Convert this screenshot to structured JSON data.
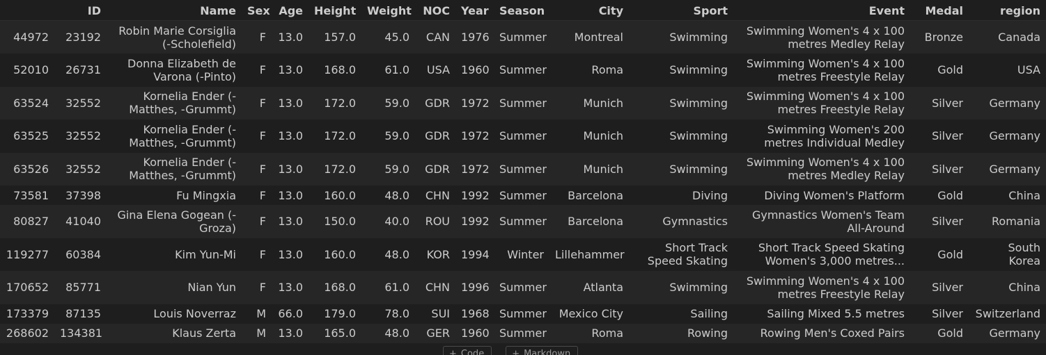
{
  "table": {
    "columns": [
      "",
      "ID",
      "Name",
      "Sex",
      "Age",
      "Height",
      "Weight",
      "NOC",
      "Year",
      "Season",
      "City",
      "Sport",
      "Event",
      "Medal",
      "region"
    ],
    "rows": [
      {
        "idx": "44972",
        "ID": "23192",
        "Name": "Robin Marie Corsiglia (-Scholefield)",
        "Sex": "F",
        "Age": "13.0",
        "Height": "157.0",
        "Weight": "45.0",
        "NOC": "CAN",
        "Year": "1976",
        "Season": "Summer",
        "City": "Montreal",
        "Sport": "Swimming",
        "Event": "Swimming Women's 4 x 100 metres Medley Relay",
        "Medal": "Bronze",
        "region": "Canada"
      },
      {
        "idx": "52010",
        "ID": "26731",
        "Name": "Donna Elizabeth de Varona (-Pinto)",
        "Sex": "F",
        "Age": "13.0",
        "Height": "168.0",
        "Weight": "61.0",
        "NOC": "USA",
        "Year": "1960",
        "Season": "Summer",
        "City": "Roma",
        "Sport": "Swimming",
        "Event": "Swimming Women's 4 x 100 metres Freestyle Relay",
        "Medal": "Gold",
        "region": "USA"
      },
      {
        "idx": "63524",
        "ID": "32552",
        "Name": "Kornelia Ender (-Matthes, -Grummt)",
        "Sex": "F",
        "Age": "13.0",
        "Height": "172.0",
        "Weight": "59.0",
        "NOC": "GDR",
        "Year": "1972",
        "Season": "Summer",
        "City": "Munich",
        "Sport": "Swimming",
        "Event": "Swimming Women's 4 x 100 metres Freestyle Relay",
        "Medal": "Silver",
        "region": "Germany"
      },
      {
        "idx": "63525",
        "ID": "32552",
        "Name": "Kornelia Ender (-Matthes, -Grummt)",
        "Sex": "F",
        "Age": "13.0",
        "Height": "172.0",
        "Weight": "59.0",
        "NOC": "GDR",
        "Year": "1972",
        "Season": "Summer",
        "City": "Munich",
        "Sport": "Swimming",
        "Event": "Swimming Women's 200 metres Individual Medley",
        "Medal": "Silver",
        "region": "Germany"
      },
      {
        "idx": "63526",
        "ID": "32552",
        "Name": "Kornelia Ender (-Matthes, -Grummt)",
        "Sex": "F",
        "Age": "13.0",
        "Height": "172.0",
        "Weight": "59.0",
        "NOC": "GDR",
        "Year": "1972",
        "Season": "Summer",
        "City": "Munich",
        "Sport": "Swimming",
        "Event": "Swimming Women's 4 x 100 metres Medley Relay",
        "Medal": "Silver",
        "region": "Germany"
      },
      {
        "idx": "73581",
        "ID": "37398",
        "Name": "Fu Mingxia",
        "Sex": "F",
        "Age": "13.0",
        "Height": "160.0",
        "Weight": "48.0",
        "NOC": "CHN",
        "Year": "1992",
        "Season": "Summer",
        "City": "Barcelona",
        "Sport": "Diving",
        "Event": "Diving Women's Platform",
        "Medal": "Gold",
        "region": "China"
      },
      {
        "idx": "80827",
        "ID": "41040",
        "Name": "Gina Elena Gogean (-Groza)",
        "Sex": "F",
        "Age": "13.0",
        "Height": "150.0",
        "Weight": "40.0",
        "NOC": "ROU",
        "Year": "1992",
        "Season": "Summer",
        "City": "Barcelona",
        "Sport": "Gymnastics",
        "Event": "Gymnastics Women's Team All-Around",
        "Medal": "Silver",
        "region": "Romania"
      },
      {
        "idx": "119277",
        "ID": "60384",
        "Name": "Kim Yun-Mi",
        "Sex": "F",
        "Age": "13.0",
        "Height": "160.0",
        "Weight": "48.0",
        "NOC": "KOR",
        "Year": "1994",
        "Season": "Winter",
        "City": "Lillehammer",
        "Sport": "Short Track Speed Skating",
        "Event": "Short Track Speed Skating Women's 3,000 metres...",
        "Medal": "Gold",
        "region": "South Korea"
      },
      {
        "idx": "170652",
        "ID": "85771",
        "Name": "Nian Yun",
        "Sex": "F",
        "Age": "13.0",
        "Height": "168.0",
        "Weight": "61.0",
        "NOC": "CHN",
        "Year": "1996",
        "Season": "Summer",
        "City": "Atlanta",
        "Sport": "Swimming",
        "Event": "Swimming Women's 4 x 100 metres Freestyle Relay",
        "Medal": "Silver",
        "region": "China"
      },
      {
        "idx": "173379",
        "ID": "87135",
        "Name": "Louis Noverraz",
        "Sex": "M",
        "Age": "66.0",
        "Height": "179.0",
        "Weight": "78.0",
        "NOC": "SUI",
        "Year": "1968",
        "Season": "Summer",
        "City": "Mexico City",
        "Sport": "Sailing",
        "Event": "Sailing Mixed 5.5 metres",
        "Medal": "Silver",
        "region": "Switzerland"
      },
      {
        "idx": "268602",
        "ID": "134381",
        "Name": "Klaus Zerta",
        "Sex": "M",
        "Age": "13.0",
        "Height": "165.0",
        "Weight": "48.0",
        "NOC": "GER",
        "Year": "1960",
        "Season": "Summer",
        "City": "Roma",
        "Sport": "Rowing",
        "Event": "Rowing Men's Coxed Pairs",
        "Medal": "Gold",
        "region": "Germany"
      }
    ]
  },
  "cell_toolbar": {
    "code_label": "Code",
    "markdown_label": "Markdown"
  }
}
